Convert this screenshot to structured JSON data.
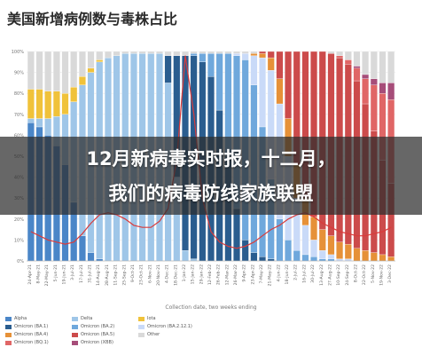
{
  "title": "美国新增病例数与毒株占比",
  "banner": {
    "line1": "12月新病毒实时报，十二月，",
    "line2": "我们的病毒防线家族联盟"
  },
  "chart_data": {
    "type": "bar",
    "stacked": true,
    "xlabel": "Collection date, two weeks ending",
    "ylim": [
      0,
      100
    ],
    "yticks": [
      "0%",
      "10%",
      "20%",
      "30%",
      "40%",
      "50%",
      "60%",
      "70%",
      "80%",
      "90%",
      "100%"
    ],
    "categories": [
      "24-Apr-21",
      "8-May-21",
      "22-May-21",
      "5-Jun-21",
      "19-Jun-21",
      "3-Jul-21",
      "17-Jul-21",
      "31-Jul-21",
      "14-Aug-21",
      "28-Aug-21",
      "11-Sep-21",
      "25-Sep-21",
      "9-Oct-21",
      "23-Oct-21",
      "6-Nov-21",
      "20-Nov-21",
      "4-Dec-21",
      "18-Dec-21",
      "1-Jan-22",
      "15-Jan-22",
      "29-Jan-22",
      "12-Feb-22",
      "26-Feb-22",
      "12-Mar-22",
      "26-Mar-22",
      "9-Apr-22",
      "23-Apr-22",
      "7-May-22",
      "21-May-22",
      "4-Jun-22",
      "18-Jun-22",
      "2-Jul-22",
      "16-Jul-22",
      "30-Jul-22",
      "13-Aug-22",
      "27-Aug-22",
      "10-Sep-22",
      "24-Sep-22",
      "8-Oct-22",
      "22-Oct-22",
      "5-Nov-22",
      "19-Nov-22",
      "3-Dec-22"
    ],
    "series": [
      {
        "name": "Alpha",
        "color": "#4a86c8",
        "values": [
          66,
          64,
          60,
          55,
          46,
          28,
          12,
          4,
          1,
          0,
          0,
          0,
          0,
          0,
          0,
          0,
          0,
          0,
          0,
          0,
          0,
          0,
          0,
          0,
          0,
          0,
          0,
          0,
          0,
          0,
          0,
          0,
          0,
          0,
          0,
          0,
          0,
          0,
          0,
          0,
          0,
          0,
          0
        ]
      },
      {
        "name": "Delta",
        "color": "#9fc6e8",
        "values": [
          2,
          4,
          8,
          14,
          24,
          48,
          72,
          86,
          94,
          97,
          98,
          99,
          99,
          99,
          99,
          99,
          85,
          40,
          5,
          1,
          0,
          0,
          0,
          0,
          0,
          0,
          0,
          0,
          0,
          0,
          0,
          0,
          0,
          0,
          0,
          0,
          0,
          0,
          0,
          0,
          0,
          0,
          0
        ]
      },
      {
        "name": "Iota",
        "color": "#f0c23a",
        "values": [
          14,
          14,
          13,
          12,
          10,
          7,
          4,
          2,
          1,
          0,
          0,
          0,
          0,
          0,
          0,
          0,
          0,
          0,
          0,
          0,
          0,
          0,
          0,
          0,
          0,
          0,
          0,
          0,
          0,
          0,
          0,
          0,
          0,
          0,
          0,
          0,
          0,
          0,
          0,
          0,
          0,
          0,
          0
        ]
      },
      {
        "name": "Omicron (BA.1)",
        "color": "#2a5d8f",
        "values": [
          0,
          0,
          0,
          0,
          0,
          0,
          0,
          0,
          0,
          0,
          0,
          0,
          0,
          0,
          0,
          0,
          13,
          58,
          93,
          97,
          95,
          88,
          72,
          50,
          25,
          10,
          4,
          2,
          1,
          0,
          0,
          0,
          0,
          0,
          0,
          0,
          0,
          0,
          0,
          0,
          0,
          0,
          0
        ]
      },
      {
        "name": "Omicron (BA.2)",
        "color": "#6fa8dc",
        "values": [
          0,
          0,
          0,
          0,
          0,
          0,
          0,
          0,
          0,
          0,
          0,
          0,
          0,
          0,
          0,
          0,
          0,
          0,
          0,
          1,
          4,
          11,
          27,
          49,
          73,
          86,
          80,
          62,
          38,
          20,
          10,
          5,
          3,
          2,
          1,
          1,
          0,
          0,
          0,
          0,
          0,
          0,
          0
        ]
      },
      {
        "name": "Omicron (BA.2.12.1)",
        "color": "#c9daf8",
        "values": [
          0,
          0,
          0,
          0,
          0,
          0,
          0,
          0,
          0,
          0,
          0,
          0,
          0,
          0,
          0,
          0,
          0,
          0,
          0,
          0,
          0,
          0,
          0,
          0,
          1,
          3,
          14,
          33,
          52,
          55,
          40,
          25,
          14,
          8,
          4,
          2,
          1,
          1,
          0,
          0,
          0,
          0,
          0
        ]
      },
      {
        "name": "Omicron (BA.4)",
        "color": "#e69138",
        "values": [
          0,
          0,
          0,
          0,
          0,
          0,
          0,
          0,
          0,
          0,
          0,
          0,
          0,
          0,
          0,
          0,
          0,
          0,
          0,
          0,
          0,
          0,
          0,
          0,
          0,
          0,
          1,
          2,
          6,
          12,
          18,
          16,
          13,
          11,
          10,
          9,
          8,
          7,
          6,
          5,
          4,
          3,
          2
        ]
      },
      {
        "name": "Omicron (BA.5)",
        "color": "#cc4b4b",
        "values": [
          0,
          0,
          0,
          0,
          0,
          0,
          0,
          0,
          0,
          0,
          0,
          0,
          0,
          0,
          0,
          0,
          0,
          0,
          0,
          0,
          0,
          0,
          0,
          0,
          0,
          0,
          0,
          1,
          3,
          13,
          32,
          54,
          70,
          79,
          85,
          87,
          88,
          86,
          80,
          70,
          58,
          45,
          35
        ]
      },
      {
        "name": "Omicron (BQ.1)",
        "color": "#e06666",
        "values": [
          0,
          0,
          0,
          0,
          0,
          0,
          0,
          0,
          0,
          0,
          0,
          0,
          0,
          0,
          0,
          0,
          0,
          0,
          0,
          0,
          0,
          0,
          0,
          0,
          0,
          0,
          0,
          0,
          0,
          0,
          0,
          0,
          0,
          0,
          0,
          0,
          1,
          2,
          6,
          12,
          22,
          32,
          40
        ]
      },
      {
        "name": "Omicron (XBB)",
        "color": "#a64d79",
        "values": [
          0,
          0,
          0,
          0,
          0,
          0,
          0,
          0,
          0,
          0,
          0,
          0,
          0,
          0,
          0,
          0,
          0,
          0,
          0,
          0,
          0,
          0,
          0,
          0,
          0,
          0,
          0,
          0,
          0,
          0,
          0,
          0,
          0,
          0,
          0,
          0,
          0,
          0,
          1,
          2,
          3,
          5,
          8
        ]
      },
      {
        "name": "Other",
        "color": "#d9d9d9",
        "values": [
          18,
          18,
          19,
          19,
          20,
          17,
          12,
          8,
          4,
          3,
          2,
          1,
          1,
          1,
          1,
          1,
          2,
          2,
          2,
          1,
          1,
          1,
          1,
          1,
          1,
          1,
          1,
          0,
          0,
          0,
          0,
          0,
          0,
          0,
          0,
          1,
          2,
          4,
          7,
          11,
          13,
          15,
          15
        ]
      }
    ],
    "cases_line": {
      "color": "#d93b3b",
      "values": [
        14,
        12,
        10,
        9,
        8,
        9,
        13,
        18,
        22,
        23,
        22,
        20,
        17,
        16,
        16,
        19,
        25,
        48,
        98,
        70,
        30,
        14,
        9,
        7,
        6,
        7,
        9,
        12,
        15,
        17,
        20,
        22,
        23,
        21,
        18,
        16,
        14,
        13,
        12,
        12,
        13,
        14,
        16
      ]
    },
    "legend": [
      "Alpha",
      "Omicron (BA.1)",
      "Omicron (BA.4)",
      "Omicron (BQ.1)",
      "Delta",
      "Omicron (BA.2)",
      "Omicron (BA.5)",
      "Omicron (XBB)",
      "Iota",
      "Omicron (BA.2.12.1)",
      "Other"
    ],
    "legend_position": "bottom",
    "grid": true
  }
}
